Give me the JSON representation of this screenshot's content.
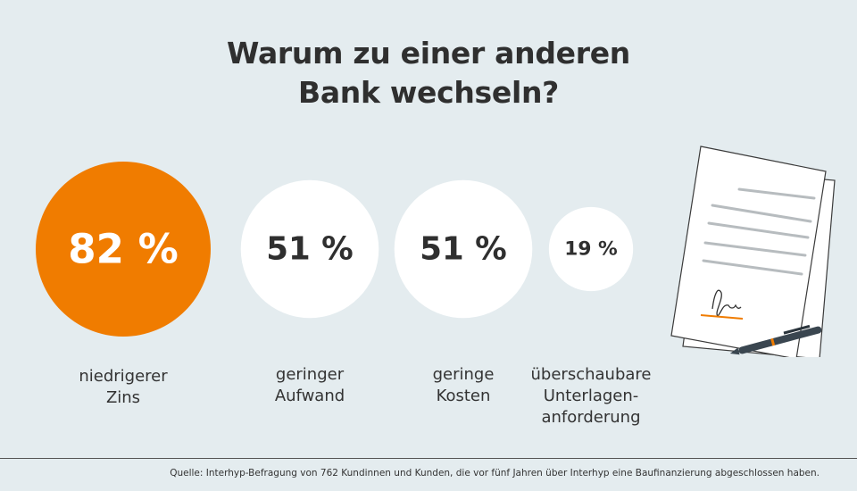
{
  "title": {
    "line1": "Warum zu einer anderen",
    "line2": "Bank wechseln?"
  },
  "chart_data": {
    "type": "bubble",
    "unit": "%",
    "categories": [
      {
        "label_lines": [
          "niedrigerer",
          "Zins"
        ],
        "value": 82,
        "display": "82 %",
        "color": "#f07c00",
        "text_color": "#ffffff"
      },
      {
        "label_lines": [
          "geringer",
          "Aufwand"
        ],
        "value": 51,
        "display": "51 %",
        "color": "#ffffff",
        "text_color": "#2f2f2f"
      },
      {
        "label_lines": [
          "geringe",
          "Kosten"
        ],
        "value": 51,
        "display": "51 %",
        "color": "#ffffff",
        "text_color": "#2f2f2f"
      },
      {
        "label_lines": [
          "überschaubare",
          "Unterlagen-",
          "anforderung"
        ],
        "value": 19,
        "display": "19 %",
        "color": "#ffffff",
        "text_color": "#2f2f2f"
      }
    ]
  },
  "source": "Quelle: Interhyp-Befragung von 762 Kundinnen und Kunden, die vor fünf Jahren über Interhyp eine Baufinanzierung abgeschlossen haben.",
  "colors": {
    "background": "#e4ecef",
    "accent": "#f07c00",
    "text": "#333333"
  },
  "illustration": "document-with-signature-and-pen-icon"
}
